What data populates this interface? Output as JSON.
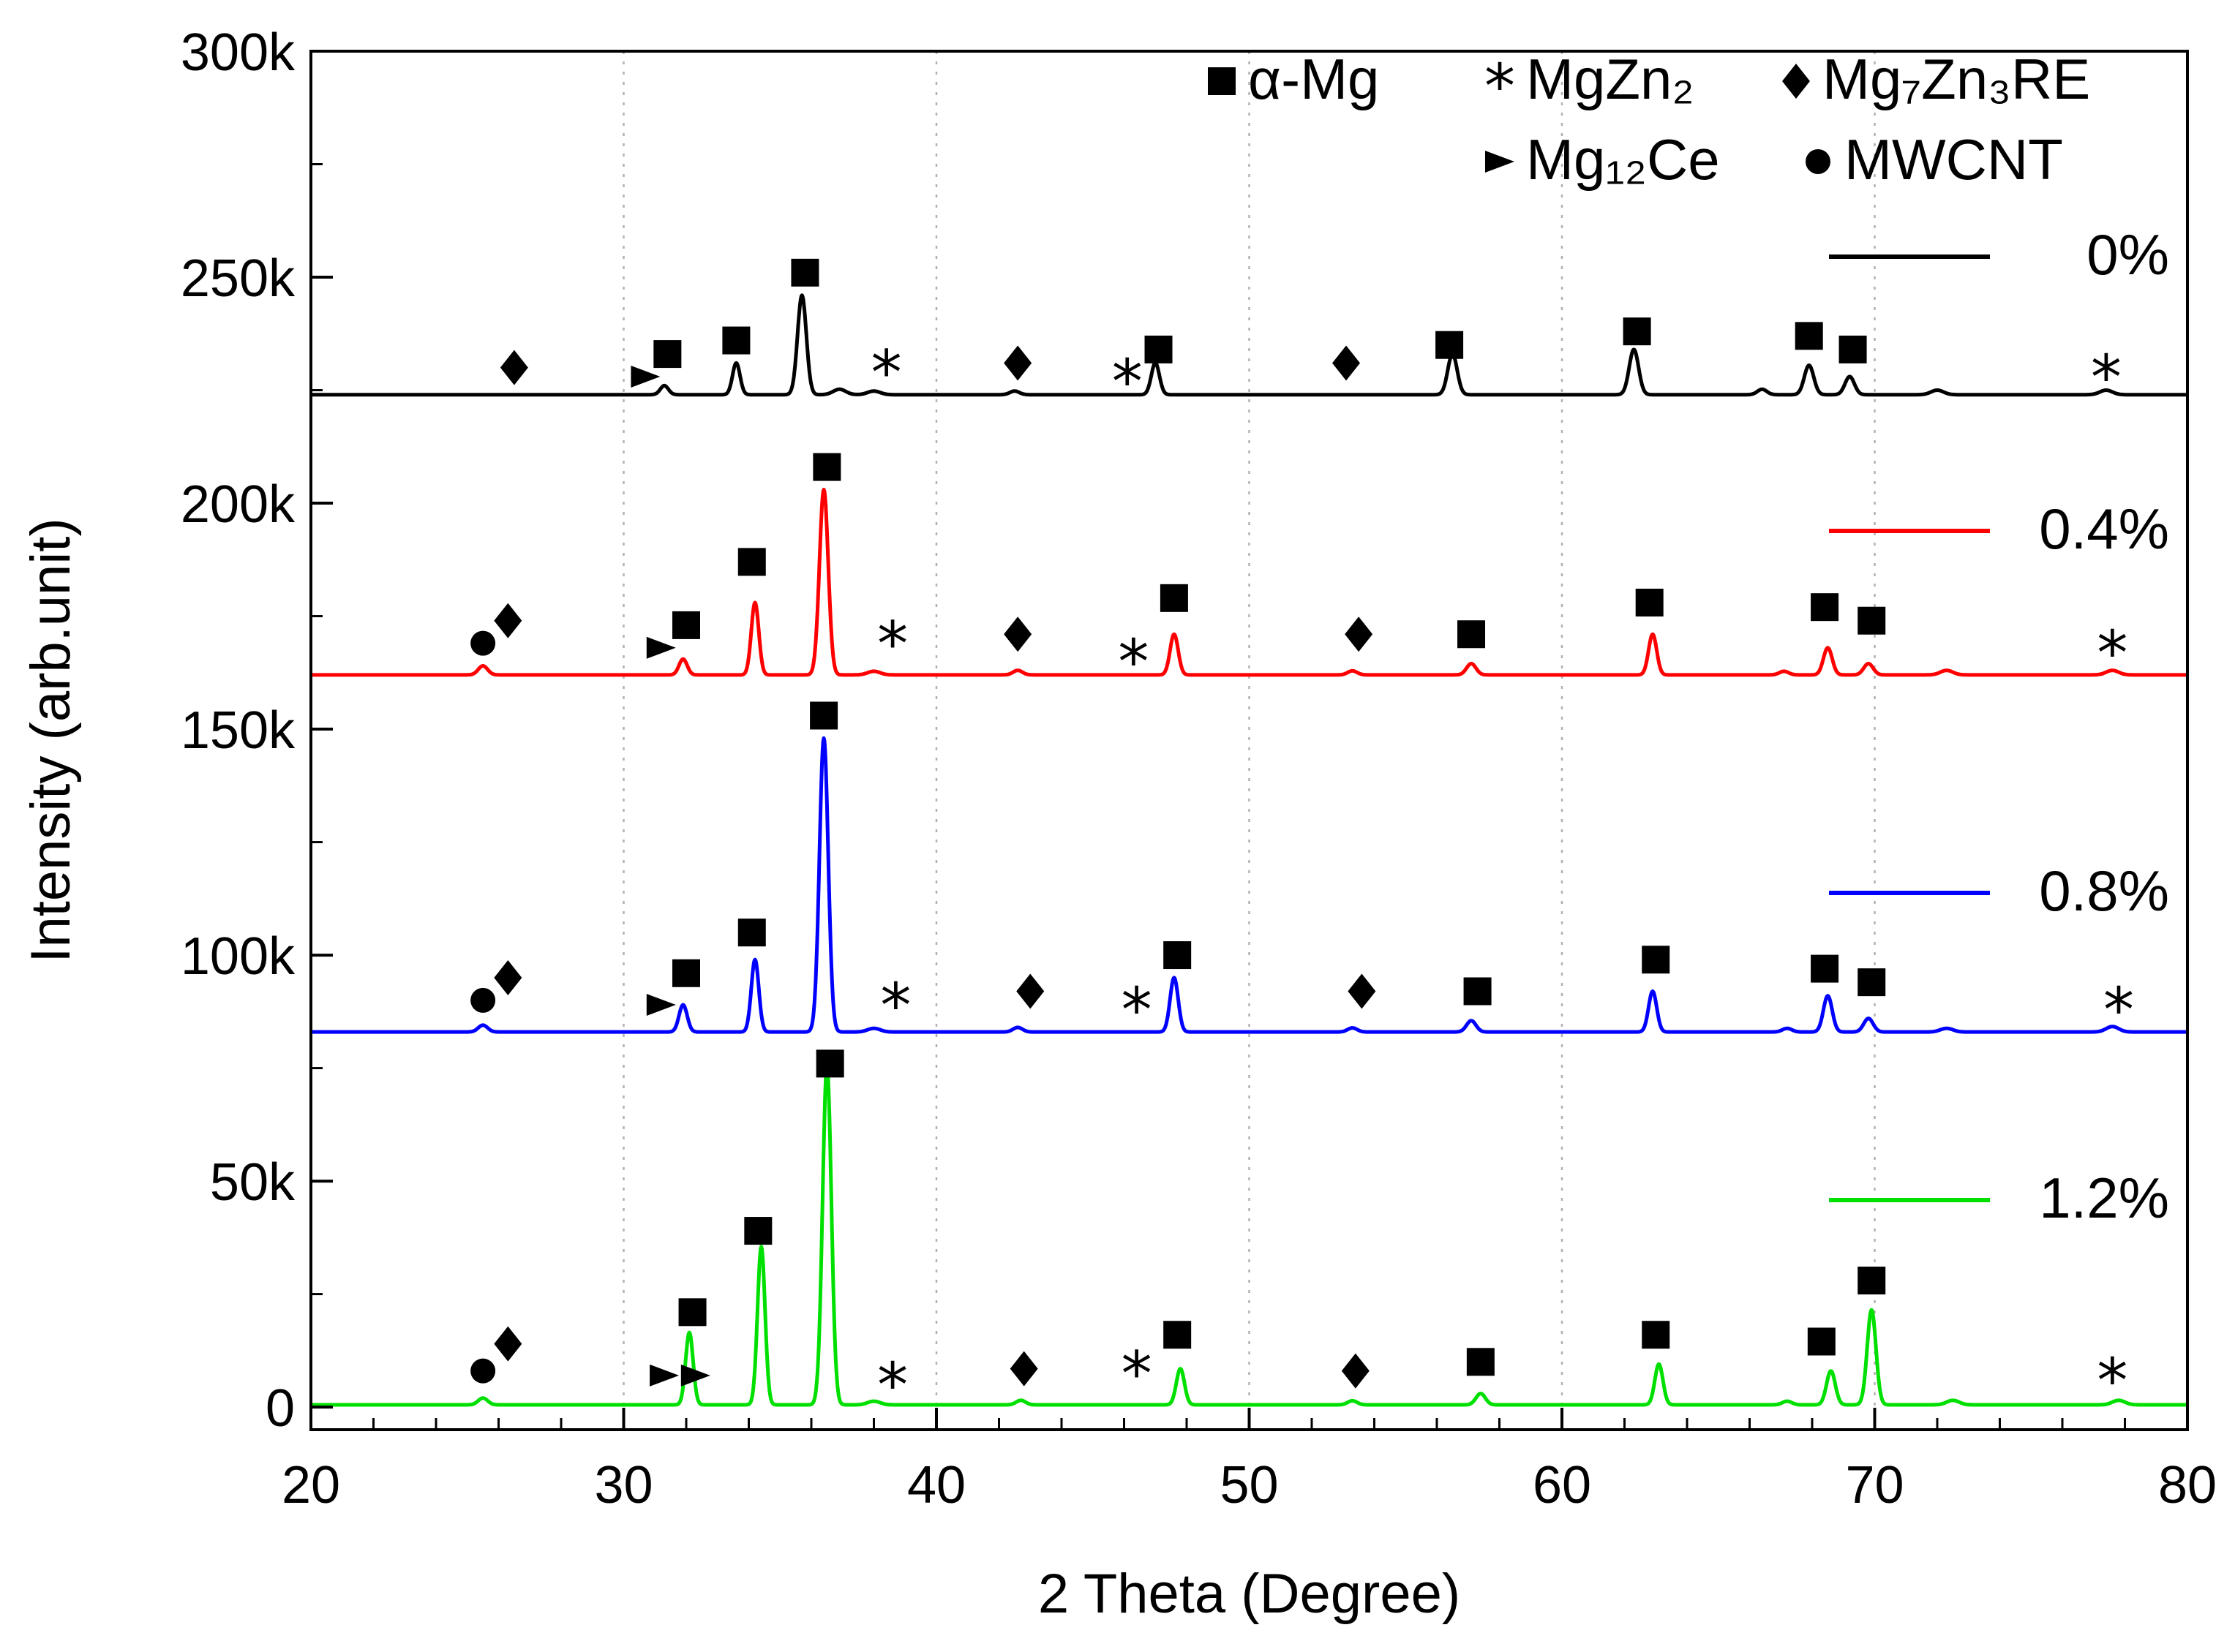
{
  "chart_data": {
    "type": "line",
    "title": "",
    "xlabel": "2 Theta (Degree)",
    "ylabel": "Intensity (arb.unit)",
    "xlim": [
      20,
      80
    ],
    "ylim": [
      -5000,
      300000
    ],
    "xticks": [
      20,
      30,
      40,
      50,
      60,
      70,
      80
    ],
    "xtick_labels": [
      "20",
      "30",
      "40",
      "50",
      "60",
      "70",
      "80"
    ],
    "yticks": [
      0,
      50000,
      100000,
      150000,
      200000,
      250000,
      300000
    ],
    "ytick_labels": [
      "0",
      "50k",
      "100k",
      "150k",
      "200k",
      "250k",
      "300k"
    ],
    "grid_x": [
      30,
      40,
      50,
      60,
      70
    ],
    "phase_legend": [
      {
        "symbol": "■",
        "label": "α-Mg"
      },
      {
        "symbol": "✱",
        "label": "MgZn₂"
      },
      {
        "symbol": "◆",
        "label": "Mg₇Zn₃RE"
      },
      {
        "symbol": "►",
        "label": "Mg₁₂Ce"
      },
      {
        "symbol": "●",
        "label": "MWCNT"
      }
    ],
    "series": [
      {
        "name": "0%",
        "color": "#000000",
        "baseline": 224000,
        "peaks": [
          [
            31.3,
            2000,
            0.13
          ],
          [
            33.6,
            7000,
            0.12
          ],
          [
            35.7,
            22000,
            0.14
          ],
          [
            36.9,
            1200,
            0.2
          ],
          [
            38.0,
            800,
            0.2
          ],
          [
            42.5,
            800,
            0.15
          ],
          [
            47.0,
            7000,
            0.13
          ],
          [
            56.5,
            9000,
            0.15
          ],
          [
            62.3,
            10000,
            0.15
          ],
          [
            66.4,
            1200,
            0.15
          ],
          [
            67.9,
            6500,
            0.15
          ],
          [
            69.2,
            4000,
            0.15
          ],
          [
            72.0,
            1000,
            0.2
          ],
          [
            77.4,
            1000,
            0.2
          ]
        ],
        "markers": [
          {
            "sym": "diamond",
            "x": 26.5,
            "y": 230000
          },
          {
            "sym": "triangle",
            "x": 30.7,
            "y": 228000
          },
          {
            "sym": "square",
            "x": 31.4,
            "y": 233000
          },
          {
            "sym": "square",
            "x": 33.6,
            "y": 236000
          },
          {
            "sym": "square",
            "x": 35.8,
            "y": 251000
          },
          {
            "sym": "star",
            "x": 38.4,
            "y": 230000
          },
          {
            "sym": "diamond",
            "x": 42.6,
            "y": 231000
          },
          {
            "sym": "star",
            "x": 46.1,
            "y": 228000
          },
          {
            "sym": "square",
            "x": 47.1,
            "y": 234000
          },
          {
            "sym": "diamond",
            "x": 53.1,
            "y": 231000
          },
          {
            "sym": "square",
            "x": 56.4,
            "y": 235000
          },
          {
            "sym": "square",
            "x": 62.4,
            "y": 238000
          },
          {
            "sym": "square",
            "x": 67.9,
            "y": 237000
          },
          {
            "sym": "square",
            "x": 69.3,
            "y": 234000
          },
          {
            "sym": "star",
            "x": 77.4,
            "y": 229000
          }
        ]
      },
      {
        "name": "0.4%",
        "color": "#ff0000",
        "baseline": 162000,
        "peaks": [
          [
            25.5,
            2000,
            0.15
          ],
          [
            31.9,
            3500,
            0.13
          ],
          [
            34.2,
            16000,
            0.12
          ],
          [
            36.4,
            41000,
            0.14
          ],
          [
            38.0,
            800,
            0.2
          ],
          [
            42.6,
            1000,
            0.15
          ],
          [
            47.6,
            9000,
            0.13
          ],
          [
            53.3,
            900,
            0.15
          ],
          [
            57.1,
            2500,
            0.15
          ],
          [
            62.9,
            9000,
            0.13
          ],
          [
            67.1,
            800,
            0.15
          ],
          [
            68.5,
            6000,
            0.14
          ],
          [
            69.8,
            2500,
            0.15
          ],
          [
            72.3,
            1000,
            0.2
          ],
          [
            77.6,
            1000,
            0.2
          ]
        ],
        "markers": [
          {
            "sym": "circle",
            "x": 25.5,
            "y": 169000
          },
          {
            "sym": "diamond",
            "x": 26.3,
            "y": 174000
          },
          {
            "sym": "triangle",
            "x": 31.2,
            "y": 168000
          },
          {
            "sym": "square",
            "x": 32.0,
            "y": 173000
          },
          {
            "sym": "square",
            "x": 34.1,
            "y": 187000
          },
          {
            "sym": "square",
            "x": 36.5,
            "y": 208000
          },
          {
            "sym": "star",
            "x": 38.6,
            "y": 170000
          },
          {
            "sym": "diamond",
            "x": 42.6,
            "y": 171000
          },
          {
            "sym": "star",
            "x": 46.3,
            "y": 166000
          },
          {
            "sym": "square",
            "x": 47.6,
            "y": 179000
          },
          {
            "sym": "diamond",
            "x": 53.5,
            "y": 171000
          },
          {
            "sym": "square",
            "x": 57.1,
            "y": 171000
          },
          {
            "sym": "square",
            "x": 62.8,
            "y": 178000
          },
          {
            "sym": "square",
            "x": 68.4,
            "y": 177000
          },
          {
            "sym": "square",
            "x": 69.9,
            "y": 174000
          },
          {
            "sym": "star",
            "x": 77.6,
            "y": 168000
          }
        ]
      },
      {
        "name": "0.8%",
        "color": "#0000ff",
        "baseline": 83000,
        "peaks": [
          [
            25.5,
            1500,
            0.15
          ],
          [
            31.9,
            6000,
            0.13
          ],
          [
            34.2,
            16000,
            0.12
          ],
          [
            36.4,
            65000,
            0.14
          ],
          [
            38.0,
            800,
            0.2
          ],
          [
            42.6,
            1000,
            0.15
          ],
          [
            47.6,
            12000,
            0.13
          ],
          [
            53.3,
            900,
            0.15
          ],
          [
            57.1,
            2500,
            0.15
          ],
          [
            62.9,
            9000,
            0.13
          ],
          [
            67.2,
            800,
            0.15
          ],
          [
            68.5,
            8000,
            0.14
          ],
          [
            69.8,
            3000,
            0.15
          ],
          [
            72.3,
            800,
            0.2
          ],
          [
            77.6,
            1200,
            0.2
          ]
        ],
        "markers": [
          {
            "sym": "circle",
            "x": 25.5,
            "y": 90000
          },
          {
            "sym": "diamond",
            "x": 26.3,
            "y": 95000
          },
          {
            "sym": "triangle",
            "x": 31.2,
            "y": 89000
          },
          {
            "sym": "square",
            "x": 32.0,
            "y": 96000
          },
          {
            "sym": "square",
            "x": 34.1,
            "y": 105000
          },
          {
            "sym": "square",
            "x": 36.4,
            "y": 153000
          },
          {
            "sym": "star",
            "x": 38.7,
            "y": 90000
          },
          {
            "sym": "diamond",
            "x": 43.0,
            "y": 92000
          },
          {
            "sym": "star",
            "x": 46.4,
            "y": 89000
          },
          {
            "sym": "square",
            "x": 47.7,
            "y": 100000
          },
          {
            "sym": "diamond",
            "x": 53.6,
            "y": 92000
          },
          {
            "sym": "square",
            "x": 57.3,
            "y": 92000
          },
          {
            "sym": "square",
            "x": 63.0,
            "y": 99000
          },
          {
            "sym": "square",
            "x": 68.4,
            "y": 97000
          },
          {
            "sym": "square",
            "x": 69.9,
            "y": 94000
          },
          {
            "sym": "star",
            "x": 77.8,
            "y": 89000
          }
        ]
      },
      {
        "name": "1.2%",
        "color": "#00e000",
        "baseline": 500,
        "peaks": [
          [
            25.5,
            1500,
            0.15
          ],
          [
            32.1,
            16000,
            0.12
          ],
          [
            34.4,
            35000,
            0.12
          ],
          [
            36.5,
            75000,
            0.14
          ],
          [
            38.0,
            800,
            0.2
          ],
          [
            42.7,
            1000,
            0.15
          ],
          [
            47.8,
            8000,
            0.13
          ],
          [
            53.3,
            900,
            0.15
          ],
          [
            57.4,
            2500,
            0.15
          ],
          [
            63.1,
            9000,
            0.13
          ],
          [
            67.2,
            800,
            0.15
          ],
          [
            68.6,
            7500,
            0.14
          ],
          [
            69.9,
            21000,
            0.14
          ],
          [
            72.5,
            1000,
            0.2
          ],
          [
            77.8,
            1000,
            0.2
          ]
        ],
        "markers": [
          {
            "sym": "circle",
            "x": 25.5,
            "y": 8000
          },
          {
            "sym": "diamond",
            "x": 26.3,
            "y": 14000
          },
          {
            "sym": "triangle",
            "x": 31.3,
            "y": 7000
          },
          {
            "sym": "triangle",
            "x": 32.3,
            "y": 7000
          },
          {
            "sym": "square",
            "x": 32.2,
            "y": 21000
          },
          {
            "sym": "square",
            "x": 34.3,
            "y": 39000
          },
          {
            "sym": "square",
            "x": 36.6,
            "y": 76000
          },
          {
            "sym": "star",
            "x": 38.6,
            "y": 6000
          },
          {
            "sym": "diamond",
            "x": 42.8,
            "y": 8500
          },
          {
            "sym": "star",
            "x": 46.4,
            "y": 8500
          },
          {
            "sym": "square",
            "x": 47.7,
            "y": 16000
          },
          {
            "sym": "diamond",
            "x": 53.4,
            "y": 8000
          },
          {
            "sym": "square",
            "x": 57.4,
            "y": 10000
          },
          {
            "sym": "square",
            "x": 63.0,
            "y": 16000
          },
          {
            "sym": "square",
            "x": 68.3,
            "y": 14500
          },
          {
            "sym": "square",
            "x": 69.9,
            "y": 28000
          },
          {
            "sym": "star",
            "x": 77.6,
            "y": 7000
          }
        ]
      }
    ]
  }
}
